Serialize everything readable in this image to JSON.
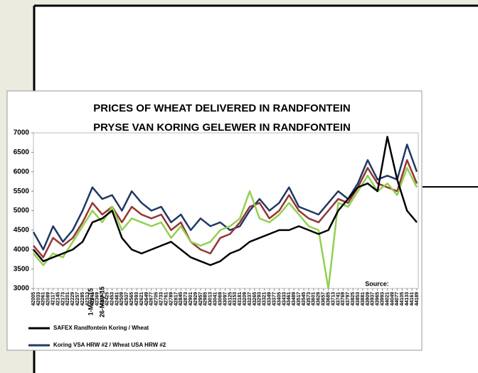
{
  "chart_data": {
    "type": "line",
    "title": "PRICES OF WHEAT DELIVERED IN RANDFONTEIN",
    "subtitle": "PRYSE VAN KORING GELEWER IN RANDFONTEIN",
    "x": [
      42005,
      42061,
      42117,
      42173,
      42229,
      42285,
      42341,
      42397,
      42453,
      42509,
      42565,
      42621,
      42677,
      42733,
      42789,
      42845,
      42901,
      42957,
      43013,
      43069,
      43125,
      43181,
      43237,
      43293,
      43349,
      43405,
      43461,
      43517,
      43573,
      43629,
      43685,
      43741,
      43797,
      43853,
      43909,
      43965,
      44021,
      44077,
      44133,
      44189
    ],
    "series": [
      {
        "name": "SAFEX Randfontein Koring / Wheat",
        "color": "#000000",
        "values": [
          4000,
          3700,
          3800,
          3900,
          4000,
          4200,
          4700,
          4800,
          5000,
          4300,
          4000,
          3900,
          4000,
          4100,
          4200,
          4000,
          3800,
          3700,
          3600,
          3700,
          3900,
          4000,
          4200,
          4300,
          4400,
          4500,
          4500,
          4600,
          4500,
          4400,
          4500,
          5000,
          5300,
          5600,
          5700,
          5500,
          6900,
          5800,
          5000,
          4700
        ]
      },
      {
        "name": "Koring VSA HRW #2 / Wheat USA HRW #2",
        "color": "#1f3864",
        "values": [
          4450,
          4000,
          4600,
          4200,
          4500,
          5000,
          5600,
          5300,
          5400,
          5000,
          5500,
          5200,
          5000,
          5100,
          4700,
          4900,
          4500,
          4800,
          4600,
          4700,
          4500,
          4600,
          5000,
          5300,
          5000,
          5200,
          5600,
          5100,
          5000,
          4900,
          5200,
          5500,
          5300,
          5700,
          6300,
          5800,
          5900,
          5800,
          6700,
          6000
        ]
      },
      {
        "color": "#943634",
        "values": [
          4100,
          3800,
          4300,
          4100,
          4300,
          4700,
          5200,
          4900,
          5100,
          4700,
          5100,
          4900,
          4800,
          4900,
          4500,
          4700,
          4200,
          4000,
          3900,
          4300,
          4400,
          4700,
          5100,
          5200,
          4800,
          5000,
          5400,
          5000,
          4800,
          4700,
          5000,
          5300,
          5200,
          5600,
          6100,
          5700,
          5600,
          5500,
          6300,
          5700
        ]
      },
      {
        "color": "#92d050",
        "values": [
          3900,
          3600,
          3900,
          3800,
          4200,
          4600,
          5000,
          4700,
          5100,
          4500,
          4800,
          4700,
          4600,
          4700,
          4300,
          4600,
          4200,
          4100,
          4200,
          4500,
          4600,
          4800,
          5500,
          4800,
          4700,
          4900,
          5200,
          4900,
          4600,
          4500,
          3000,
          5200,
          5100,
          5500,
          5900,
          5500,
          5700,
          5400,
          6100,
          5600
        ]
      }
    ],
    "xlim": [
      42005,
      44197
    ],
    "xticks": [
      42005,
      42033,
      42061,
      42089,
      42117,
      42145,
      42173,
      42201,
      42229,
      42257,
      42285,
      42313,
      42341,
      42369,
      42397,
      42425,
      42453,
      42481,
      42509,
      42537,
      42565,
      42593,
      42621,
      42649,
      42677,
      42705,
      42733,
      42761,
      42789,
      42817,
      42845,
      42873,
      42901,
      42929,
      42957,
      42985,
      43013,
      43041,
      43069,
      43097,
      43125,
      43153,
      43181,
      43209,
      43237,
      43265,
      43293,
      43321,
      43349,
      43377,
      43405,
      43433,
      43461,
      43489,
      43517,
      43545,
      43573,
      43601,
      43629,
      43657,
      43685,
      43713,
      43741,
      43769,
      43797,
      43825,
      43853,
      43881,
      43909,
      43937,
      43965,
      43993,
      44021,
      44049,
      44077,
      44105,
      44133,
      44161,
      44189
    ],
    "ylim": [
      3000,
      7000
    ],
    "yticks": [
      3000,
      3500,
      4000,
      4500,
      5000,
      5500,
      6000,
      6500,
      7000
    ],
    "annotations": [
      "1-May-15",
      "26-May-15",
      "Source:"
    ]
  }
}
